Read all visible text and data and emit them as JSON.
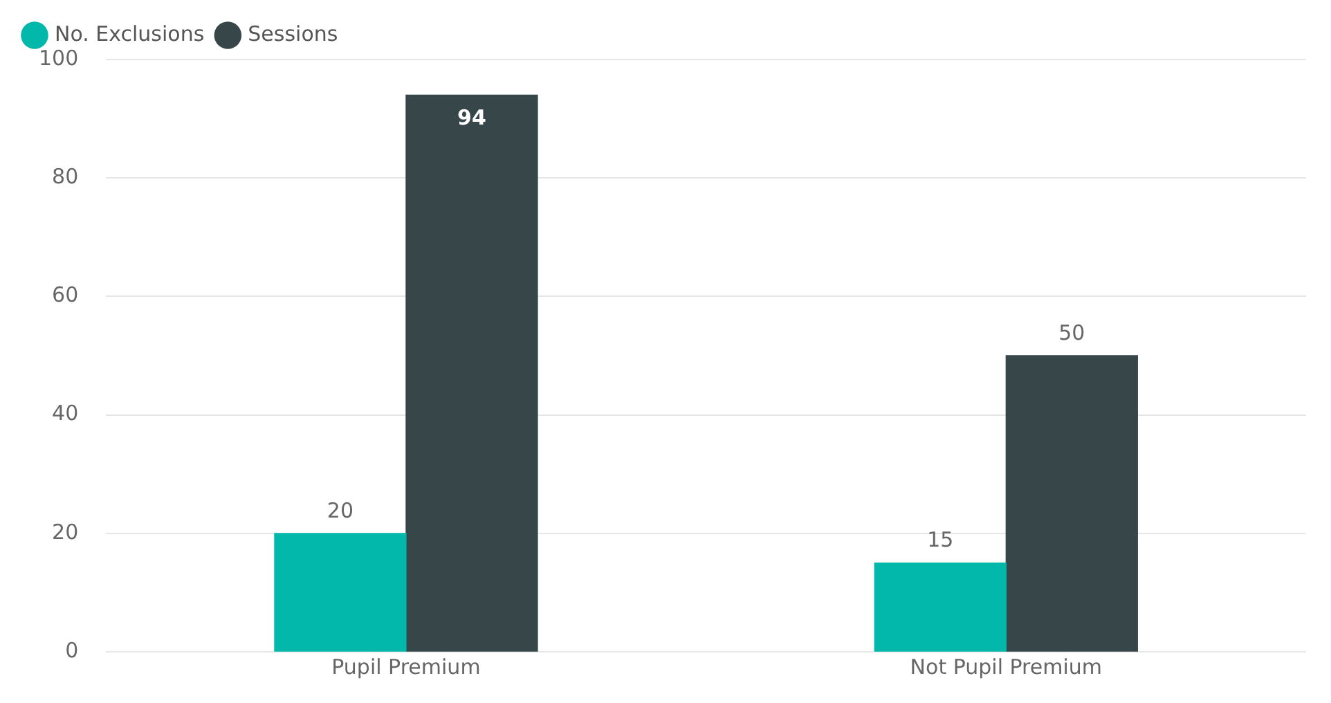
{
  "chart_data": {
    "type": "bar",
    "categories": [
      "Pupil Premium",
      "Not Pupil Premium"
    ],
    "series": [
      {
        "name": "No. Exclusions",
        "color": "#01b8aa",
        "values": [
          20,
          15
        ]
      },
      {
        "name": "Sessions",
        "color": "#374649",
        "values": [
          94,
          50
        ]
      }
    ],
    "ylim": [
      0,
      100
    ],
    "yticks": [
      0,
      20,
      40,
      60,
      80,
      100
    ],
    "grid": "y",
    "legend": "top left",
    "data_labels": true
  }
}
